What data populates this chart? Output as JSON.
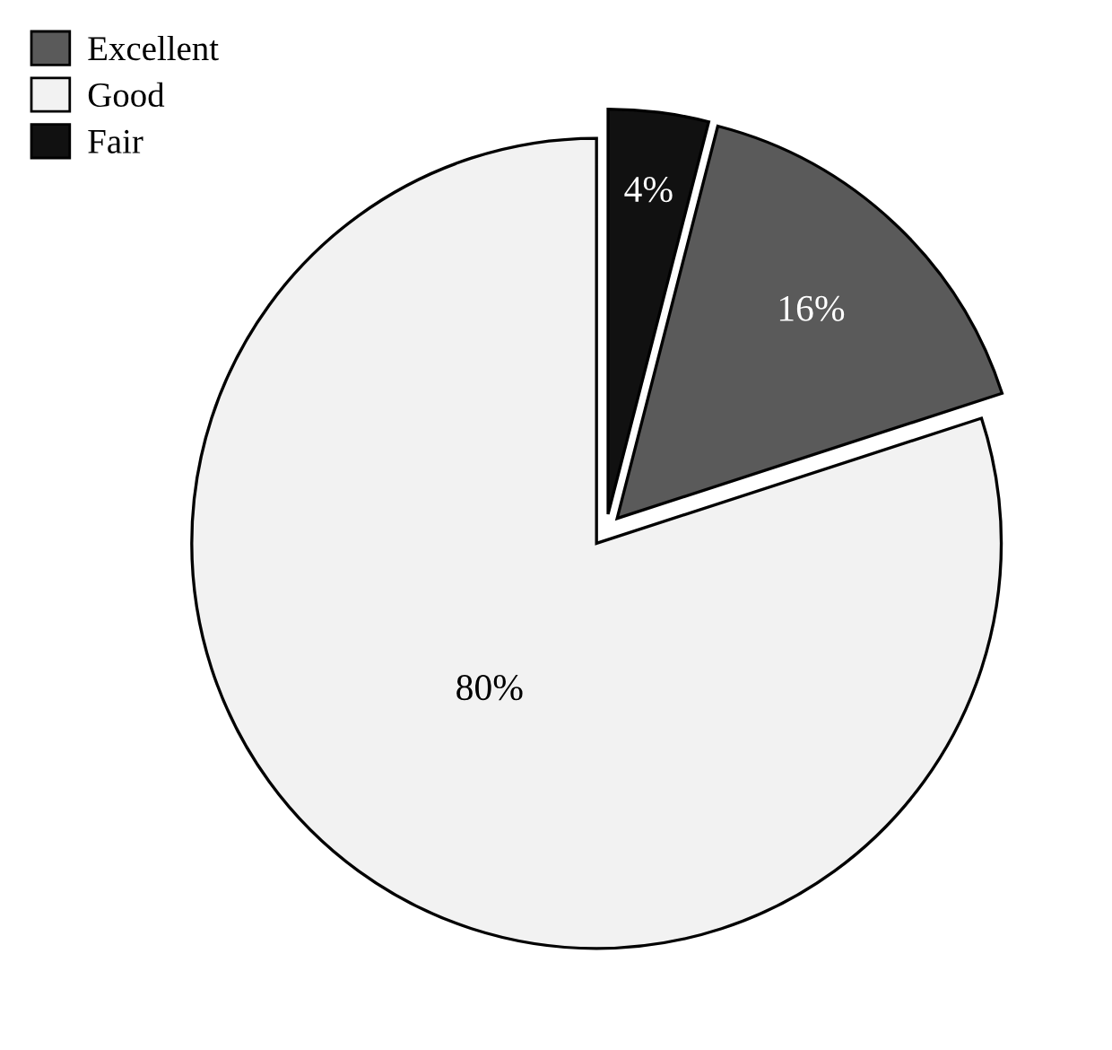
{
  "chart_data": {
    "type": "pie",
    "categories": [
      "Excellent",
      "Good",
      "Fair"
    ],
    "values": [
      16,
      80,
      4
    ],
    "colors": [
      "#5a5a5a",
      "#f2f2f2",
      "#111111"
    ],
    "value_labels": [
      "16%",
      "80%",
      "4%"
    ],
    "legend": "top left"
  }
}
